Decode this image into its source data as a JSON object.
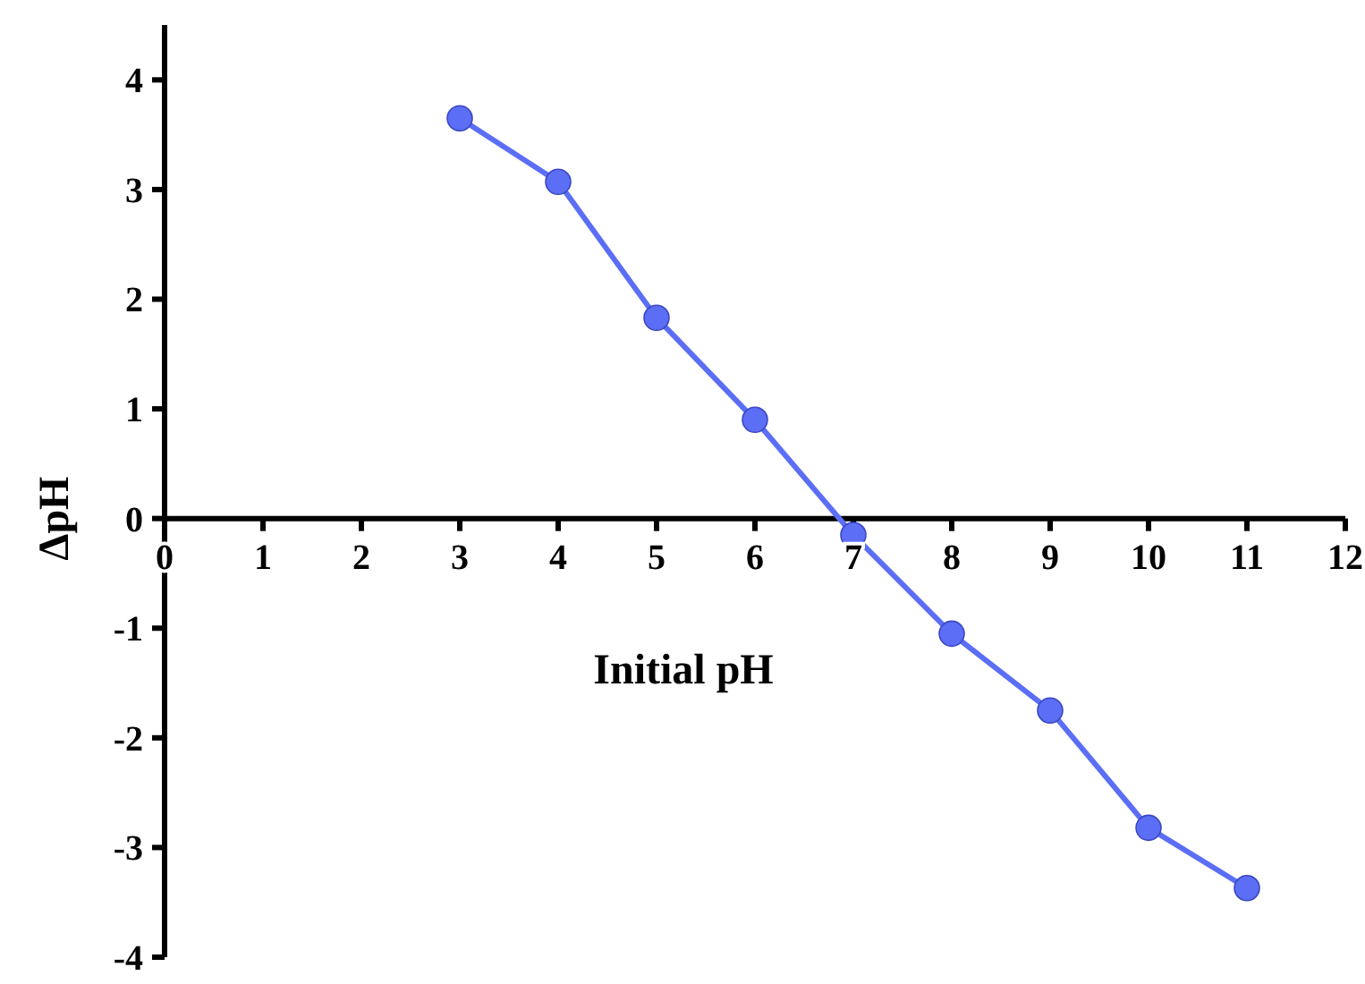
{
  "chart_data": {
    "type": "line",
    "xlabel": "Initial pH",
    "ylabel": "ΔpH",
    "x": [
      3,
      4,
      5,
      6,
      7,
      8,
      9,
      10,
      11
    ],
    "series": [
      {
        "color": "#5b6ef5",
        "values": [
          3.65,
          3.07,
          1.83,
          0.9,
          -0.15,
          -1.05,
          -1.75,
          -2.82,
          -3.37
        ]
      }
    ],
    "xlim": [
      0,
      12
    ],
    "xticks": [
      0,
      1,
      2,
      3,
      4,
      5,
      6,
      7,
      8,
      9,
      10,
      11,
      12
    ],
    "ylim": [
      -4,
      4.5
    ],
    "yticks": [
      -4,
      -3,
      -2,
      -1,
      0,
      1,
      2,
      3,
      4
    ],
    "marker": "circle",
    "line_style": "solid",
    "grid": false
  }
}
